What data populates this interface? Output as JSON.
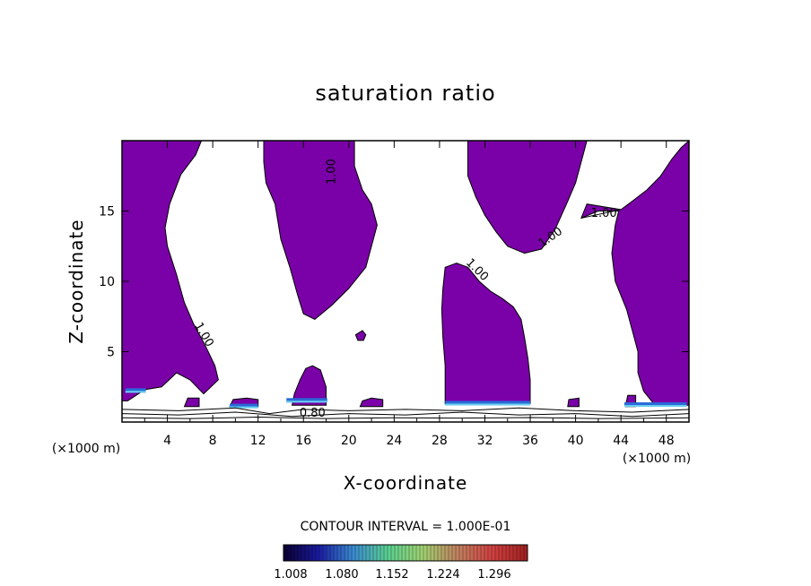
{
  "chart_data": {
    "type": "contour",
    "title": "saturation ratio",
    "xlabel": "X-coordinate",
    "ylabel": "Z-coordinate",
    "x_unit": "(×1000 m)",
    "y_unit": "(×1000 m)",
    "xlim": [
      0,
      50
    ],
    "ylim": [
      0,
      20
    ],
    "x_ticks": [
      4,
      8,
      12,
      16,
      20,
      24,
      28,
      32,
      36,
      40,
      44,
      48
    ],
    "y_ticks": [
      5,
      10,
      15
    ],
    "contour_interval_text": "CONTOUR INTERVAL = 1.000E-01",
    "contour_labels": [
      "1.00",
      "1.00",
      "1.00",
      "1.00",
      "1.00",
      "0.80"
    ],
    "fill_color": "#7a00a8",
    "colorbar": {
      "tick_labels": [
        "1.008",
        "1.080",
        "1.152",
        "1.224",
        "1.296"
      ],
      "colors": [
        "#0a0030",
        "#1a1aa0",
        "#3a8ad0",
        "#5ad090",
        "#a0d070",
        "#c08060",
        "#d04040",
        "#a02020"
      ]
    },
    "regions": [
      {
        "name": "left-column",
        "outline": [
          [
            0,
            20
          ],
          [
            7,
            20
          ],
          [
            6.5,
            19
          ],
          [
            5.2,
            17.6
          ],
          [
            4.2,
            15.5
          ],
          [
            3.8,
            13.8
          ],
          [
            4,
            12.5
          ],
          [
            4.8,
            10.5
          ],
          [
            5.5,
            8.5
          ],
          [
            6.3,
            7
          ],
          [
            7.3,
            5.5
          ],
          [
            8.2,
            4
          ],
          [
            8.5,
            3
          ],
          [
            7.2,
            2
          ],
          [
            6,
            3
          ],
          [
            4.8,
            3.5
          ],
          [
            3.5,
            2.5
          ],
          [
            2,
            2.3
          ],
          [
            0.5,
            1.5
          ],
          [
            0,
            1.5
          ]
        ]
      },
      {
        "name": "upper-center-left",
        "outline": [
          [
            12.5,
            20
          ],
          [
            20.5,
            20
          ],
          [
            20.5,
            18.2
          ],
          [
            21.2,
            16.5
          ],
          [
            22,
            15.5
          ],
          [
            22.5,
            14
          ],
          [
            22,
            12.5
          ],
          [
            21.5,
            11
          ],
          [
            20,
            9.5
          ],
          [
            18.5,
            8.3
          ],
          [
            17,
            7.3
          ],
          [
            16,
            7.7
          ],
          [
            15.5,
            9
          ],
          [
            14.8,
            11
          ],
          [
            14,
            13
          ],
          [
            13.5,
            15.5
          ],
          [
            12.7,
            17
          ],
          [
            12.5,
            18.5
          ]
        ]
      },
      {
        "name": "upper-center-right",
        "outline": [
          [
            30.5,
            20
          ],
          [
            41,
            20
          ],
          [
            40.5,
            18.5
          ],
          [
            40,
            17
          ],
          [
            39.2,
            15.5
          ],
          [
            38.2,
            13.7
          ],
          [
            37,
            12.3
          ],
          [
            35.5,
            12
          ],
          [
            34,
            12.5
          ],
          [
            33,
            13.5
          ],
          [
            32,
            14.7
          ],
          [
            31.2,
            16
          ],
          [
            30.5,
            17.5
          ]
        ]
      },
      {
        "name": "right-column",
        "outline": [
          [
            50,
            20
          ],
          [
            50,
            1.2
          ],
          [
            47,
            1.2
          ],
          [
            46,
            2.2
          ],
          [
            45.5,
            3.5
          ],
          [
            45.5,
            5
          ],
          [
            45,
            6.5
          ],
          [
            44.5,
            8
          ],
          [
            43.5,
            10
          ],
          [
            43.2,
            12
          ],
          [
            43.5,
            14
          ],
          [
            43.8,
            15
          ],
          [
            42,
            15
          ],
          [
            40.5,
            14.5
          ],
          [
            41,
            15.5
          ],
          [
            44,
            15.1
          ],
          [
            45,
            15.7
          ],
          [
            46.3,
            16.5
          ],
          [
            47.5,
            17.5
          ],
          [
            48.5,
            18.7
          ],
          [
            49.3,
            19.5
          ]
        ]
      },
      {
        "name": "center-right-column",
        "outline": [
          [
            28.5,
            11
          ],
          [
            29.5,
            11.3
          ],
          [
            30.5,
            11
          ],
          [
            31.5,
            10
          ],
          [
            32.5,
            9.3
          ],
          [
            33.5,
            8.8
          ],
          [
            34.5,
            8.2
          ],
          [
            35.2,
            7.3
          ],
          [
            35.5,
            6
          ],
          [
            35.8,
            4.5
          ],
          [
            36,
            3
          ],
          [
            36,
            1.3
          ],
          [
            28.5,
            1.3
          ],
          [
            28.5,
            4
          ],
          [
            28.3,
            6
          ],
          [
            28.2,
            8
          ],
          [
            28.3,
            9.5
          ]
        ]
      },
      {
        "name": "small-bump-16",
        "outline": [
          [
            15,
            1.2
          ],
          [
            18,
            1.2
          ],
          [
            18,
            2.5
          ],
          [
            17.5,
            3.7
          ],
          [
            16.8,
            4
          ],
          [
            16.2,
            3.8
          ],
          [
            15.7,
            3
          ],
          [
            15.2,
            2
          ]
        ]
      },
      {
        "name": "blob-20",
        "outline": [
          [
            20.6,
            6.2
          ],
          [
            21.2,
            6.5
          ],
          [
            21.5,
            6.2
          ],
          [
            21.3,
            5.8
          ],
          [
            20.8,
            5.8
          ]
        ]
      },
      {
        "name": "patch-6",
        "outline": [
          [
            5.5,
            1.1
          ],
          [
            6.8,
            1.1
          ],
          [
            6.8,
            1.7
          ],
          [
            5.8,
            1.7
          ]
        ]
      },
      {
        "name": "patch-10",
        "outline": [
          [
            9.5,
            1.1
          ],
          [
            12,
            1.1
          ],
          [
            12,
            1.6
          ],
          [
            11,
            1.7
          ],
          [
            9.8,
            1.6
          ]
        ]
      },
      {
        "name": "patch-22",
        "outline": [
          [
            21,
            1.1
          ],
          [
            23,
            1.1
          ],
          [
            23,
            1.6
          ],
          [
            22,
            1.7
          ],
          [
            21.2,
            1.5
          ]
        ]
      },
      {
        "name": "patch-40",
        "outline": [
          [
            39.3,
            1.1
          ],
          [
            40.3,
            1.1
          ],
          [
            40.3,
            1.7
          ],
          [
            39.4,
            1.6
          ]
        ]
      },
      {
        "name": "patch-45",
        "outline": [
          [
            44.4,
            1.1
          ],
          [
            45.3,
            1.1
          ],
          [
            45.3,
            1.9
          ],
          [
            44.6,
            1.9
          ]
        ]
      }
    ],
    "boundary_contours": [
      [
        [
          0,
          0.6
        ],
        [
          5,
          0.5
        ],
        [
          10,
          0.7
        ],
        [
          15,
          0.4
        ],
        [
          20,
          0.6
        ],
        [
          25,
          0.5
        ],
        [
          30,
          0.7
        ],
        [
          35,
          0.5
        ],
        [
          40,
          0.6
        ],
        [
          45,
          0.4
        ],
        [
          50,
          0.6
        ]
      ],
      [
        [
          0,
          0.9
        ],
        [
          5,
          0.8
        ],
        [
          10,
          1.0
        ],
        [
          13,
          0.6
        ],
        [
          16,
          0.9
        ],
        [
          20,
          0.8
        ],
        [
          25,
          0.9
        ],
        [
          30,
          0.8
        ],
        [
          35,
          1.0
        ],
        [
          40,
          0.8
        ],
        [
          45,
          0.7
        ],
        [
          50,
          0.9
        ]
      ],
      [
        [
          0,
          0.3
        ],
        [
          6,
          0.25
        ],
        [
          12,
          0.35
        ],
        [
          18,
          0.25
        ],
        [
          24,
          0.3
        ],
        [
          30,
          0.28
        ],
        [
          36,
          0.32
        ],
        [
          42,
          0.25
        ],
        [
          50,
          0.3
        ]
      ]
    ]
  }
}
